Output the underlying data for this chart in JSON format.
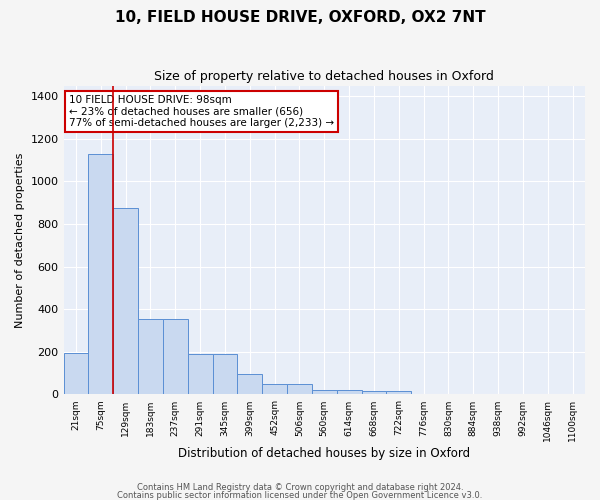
{
  "title": "10, FIELD HOUSE DRIVE, OXFORD, OX2 7NT",
  "subtitle": "Size of property relative to detached houses in Oxford",
  "xlabel": "Distribution of detached houses by size in Oxford",
  "ylabel": "Number of detached properties",
  "bar_values": [
    196,
    1128,
    876,
    352,
    352,
    192,
    192,
    96,
    50,
    50,
    20,
    20,
    15,
    15,
    0,
    0,
    0,
    0,
    0,
    0,
    0
  ],
  "bin_labels": [
    "21sqm",
    "75sqm",
    "129sqm",
    "183sqm",
    "237sqm",
    "291sqm",
    "345sqm",
    "399sqm",
    "452sqm",
    "506sqm",
    "560sqm",
    "614sqm",
    "668sqm",
    "722sqm",
    "776sqm",
    "830sqm",
    "884sqm",
    "938sqm",
    "992sqm",
    "1046sqm",
    "1100sqm"
  ],
  "bar_color": "#c9d9f0",
  "bar_edge_color": "#5b8fd4",
  "background_color": "#e8eef8",
  "fig_background": "#f5f5f5",
  "grid_color": "#ffffff",
  "annotation_box_color": "#ffffff",
  "annotation_border_color": "#cc0000",
  "annotation_text_line1": "10 FIELD HOUSE DRIVE: 98sqm",
  "annotation_text_line2": "← 23% of detached houses are smaller (656)",
  "annotation_text_line3": "77% of semi-detached houses are larger (2,233) →",
  "red_line_x": 1.5,
  "ylim": [
    0,
    1450
  ],
  "yticks": [
    0,
    200,
    400,
    600,
    800,
    1000,
    1200,
    1400
  ],
  "footnote1": "Contains HM Land Registry data © Crown copyright and database right 2024.",
  "footnote2": "Contains public sector information licensed under the Open Government Licence v3.0."
}
